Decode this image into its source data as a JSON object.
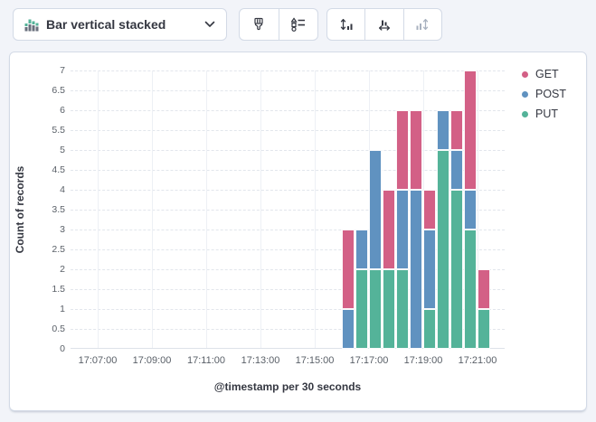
{
  "toolbar": {
    "chart_type_label": "Bar vertical stacked",
    "chart_type_icon": "bar-vertical-stacked-icon",
    "buttons": [
      {
        "name": "visual-options-button",
        "icon": "paintbrush-icon",
        "disabled": false
      },
      {
        "name": "legend-settings-button",
        "icon": "legend-list-icon",
        "disabled": false
      },
      {
        "name": "left-axis-button",
        "icon": "left-axis-icon",
        "disabled": false
      },
      {
        "name": "bottom-axis-button",
        "icon": "bottom-axis-icon",
        "disabled": false
      },
      {
        "name": "right-axis-button",
        "icon": "right-axis-icon",
        "disabled": true
      }
    ]
  },
  "chart_data": {
    "type": "bar",
    "stacked": true,
    "orientation": "vertical",
    "title": "",
    "xlabel": "@timestamp per 30 seconds",
    "ylabel": "Count of records",
    "ylim": [
      0,
      7
    ],
    "ytick_step": 0.5,
    "grid": true,
    "legend_position": "right",
    "x_domain": [
      "17:06:00",
      "17:22:00"
    ],
    "x_ticks": [
      "17:07:00",
      "17:09:00",
      "17:11:00",
      "17:13:00",
      "17:15:00",
      "17:17:00",
      "17:19:00",
      "17:21:00"
    ],
    "bucket_seconds": 30,
    "categories": [
      "17:16:00",
      "17:16:30",
      "17:17:00",
      "17:17:30",
      "17:18:00",
      "17:18:30",
      "17:19:00",
      "17:19:30",
      "17:20:00",
      "17:20:30",
      "17:21:00"
    ],
    "series": [
      {
        "name": "GET",
        "color": "#D36086",
        "values": [
          2,
          0,
          0,
          2,
          2,
          2,
          1,
          0,
          1,
          3,
          1
        ]
      },
      {
        "name": "POST",
        "color": "#6092C0",
        "values": [
          1,
          1,
          3,
          0,
          2,
          4,
          2,
          1,
          1,
          1,
          0
        ]
      },
      {
        "name": "PUT",
        "color": "#54B399",
        "values": [
          0,
          2,
          2,
          2,
          2,
          0,
          1,
          5,
          4,
          3,
          1
        ]
      }
    ],
    "stack_order_bottom_to_top": [
      "PUT",
      "POST",
      "GET"
    ]
  },
  "colors": {
    "icon_dark": "#343741",
    "icon_disabled": "#a8b1bf",
    "icon_green": "#54B399",
    "icon_gray": "#69707D"
  }
}
